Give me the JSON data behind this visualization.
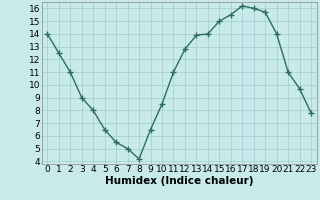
{
  "x": [
    0,
    1,
    2,
    3,
    4,
    5,
    6,
    7,
    8,
    9,
    10,
    11,
    12,
    13,
    14,
    15,
    16,
    17,
    18,
    19,
    20,
    21,
    22,
    23
  ],
  "y": [
    14,
    12.5,
    11,
    9,
    8,
    6.5,
    5.5,
    5,
    4.2,
    6.5,
    8.5,
    11,
    12.8,
    13.9,
    14,
    15,
    15.5,
    16.2,
    16,
    15.7,
    14,
    11,
    9.7,
    7.8
  ],
  "line_color": "#2d6e5e",
  "marker": "+",
  "marker_size": 4,
  "marker_linewidth": 1.0,
  "bg_color": "#c8eaea",
  "grid_color": "#a0cccc",
  "xlabel": "Humidex (Indice chaleur)",
  "xlim": [
    -0.5,
    23.5
  ],
  "ylim": [
    3.8,
    16.5
  ],
  "yticks": [
    4,
    5,
    6,
    7,
    8,
    9,
    10,
    11,
    12,
    13,
    14,
    15,
    16
  ],
  "xticks": [
    0,
    1,
    2,
    3,
    4,
    5,
    6,
    7,
    8,
    9,
    10,
    11,
    12,
    13,
    14,
    15,
    16,
    17,
    18,
    19,
    20,
    21,
    22,
    23
  ],
  "xlabel_fontsize": 7.5,
  "tick_fontsize": 6.5,
  "linewidth": 1.0
}
